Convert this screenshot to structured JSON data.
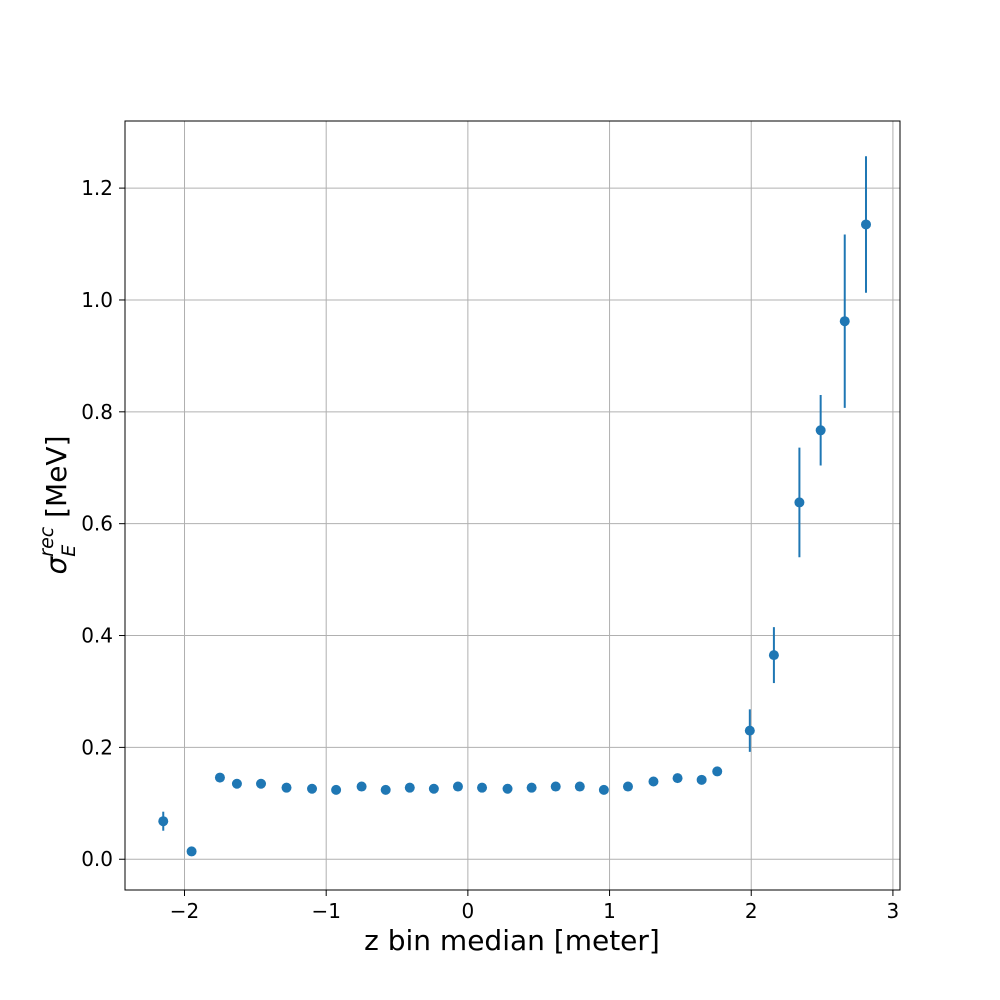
{
  "chart_data": {
    "type": "scatter",
    "xlabel": "z bin median [meter]",
    "ylabel": {
      "base": "σ",
      "sub": "E",
      "sup": "rec",
      "unit": " [MeV]"
    },
    "xlim": [
      -2.42,
      3.05
    ],
    "ylim": [
      -0.055,
      1.32
    ],
    "xticks": [
      -2,
      -1,
      0,
      1,
      2,
      3
    ],
    "xtick_labels": [
      "−2",
      "−1",
      "0",
      "1",
      "2",
      "3"
    ],
    "yticks": [
      0.0,
      0.2,
      0.4,
      0.6,
      0.8,
      1.0,
      1.2
    ],
    "ytick_labels": [
      "0.0",
      "0.2",
      "0.4",
      "0.6",
      "0.8",
      "1.0",
      "1.2"
    ],
    "grid": true,
    "color": "#1f77b4",
    "series": [
      {
        "x": [
          -2.15,
          -1.95,
          -1.75,
          -1.63,
          -1.46,
          -1.28,
          -1.1,
          -0.93,
          -0.75,
          -0.58,
          -0.41,
          -0.24,
          -0.07,
          0.1,
          0.28,
          0.45,
          0.62,
          0.79,
          0.96,
          1.13,
          1.31,
          1.48,
          1.65,
          1.76,
          1.99,
          2.16,
          2.34,
          2.49,
          2.66,
          2.81
        ],
        "y": [
          0.068,
          0.014,
          0.146,
          0.135,
          0.135,
          0.128,
          0.126,
          0.124,
          0.13,
          0.124,
          0.128,
          0.126,
          0.13,
          0.128,
          0.126,
          0.128,
          0.13,
          0.13,
          0.124,
          0.13,
          0.139,
          0.145,
          0.142,
          0.157,
          0.23,
          0.365,
          0.638,
          0.767,
          0.962,
          1.135
        ],
        "yerr": [
          0.017,
          0.006,
          0.005,
          0.004,
          0.004,
          0.004,
          0.004,
          0.004,
          0.004,
          0.004,
          0.004,
          0.004,
          0.004,
          0.004,
          0.004,
          0.004,
          0.004,
          0.004,
          0.004,
          0.004,
          0.005,
          0.005,
          0.005,
          0.006,
          0.038,
          0.05,
          0.098,
          0.063,
          0.155,
          0.122
        ]
      }
    ]
  }
}
